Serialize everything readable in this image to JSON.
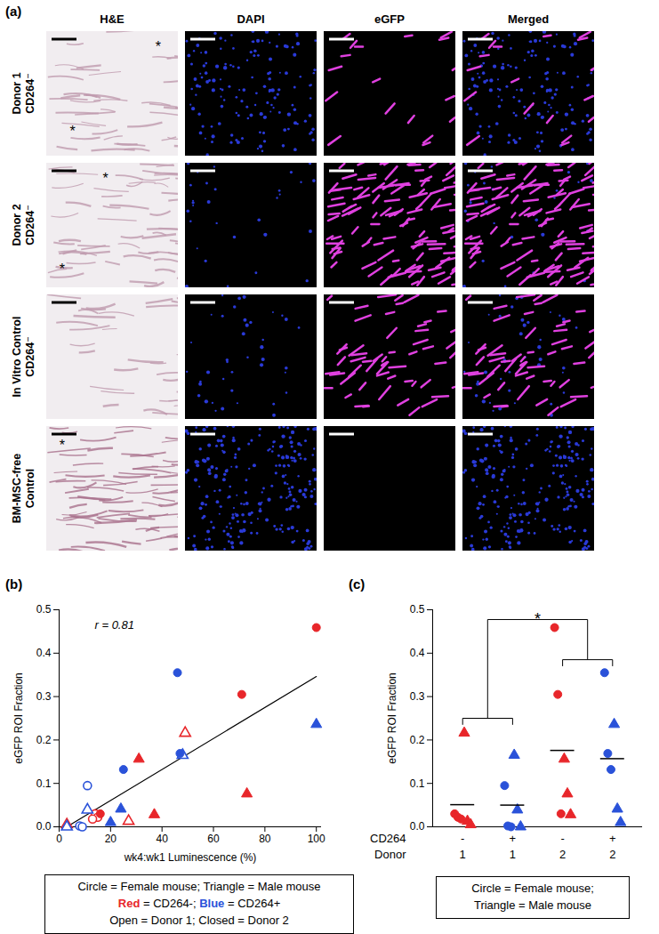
{
  "panel_a": {
    "label": "(a)",
    "columns": [
      "H&E",
      "DAPI",
      "eGFP",
      "Merged"
    ],
    "rows": [
      {
        "label": [
          "Donor 1",
          "CD264⁻"
        ],
        "annotations": [
          "*",
          "*"
        ]
      },
      {
        "label": [
          "Donor 2",
          "CD264⁻"
        ],
        "annotations": [
          "*",
          "*"
        ]
      },
      {
        "label": [
          "In Vitro Control",
          "CD264⁻"
        ],
        "annotations": []
      },
      {
        "label": [
          "BM-MSC-free",
          "Control"
        ],
        "annotations": [
          "*"
        ]
      }
    ]
  },
  "chart_data": [
    {
      "type": "scatter",
      "title": "(b)",
      "x_label": "wk4:wk1 Luminescence (%)",
      "y_label": "eGFP ROI Fraction",
      "xlim": [
        0,
        102
      ],
      "ylim": [
        0,
        0.5
      ],
      "xticks": [
        0,
        20,
        40,
        60,
        80,
        100
      ],
      "yticks": [
        {
          "value": 0,
          "label": "0.0"
        },
        {
          "value": 0.1,
          "label": "0.1"
        },
        {
          "value": 0.2,
          "label": "0.2"
        },
        {
          "value": 0.3,
          "label": "0.3"
        },
        {
          "value": 0.4,
          "label": "0.4"
        },
        {
          "value": 0.5,
          "label": "0.5"
        }
      ],
      "annotations": [
        {
          "text": "r = 0.81"
        }
      ],
      "series": [
        {
          "color": "#e8262a",
          "marker": "circle-open",
          "x": [
            14,
            15,
            13
          ],
          "values": [
            0.03,
            0.022,
            0.018
          ]
        },
        {
          "color": "#e8262a",
          "marker": "triangle-open",
          "x": [
            49,
            27,
            3
          ],
          "values": [
            0.216,
            0.013,
            0.005
          ]
        },
        {
          "color": "#2a52d9",
          "marker": "circle-open",
          "x": [
            11,
            8,
            9
          ],
          "values": [
            0.095,
            0.002,
            0.0
          ]
        },
        {
          "color": "#2a52d9",
          "marker": "triangle-open",
          "x": [
            48,
            11,
            3
          ],
          "values": [
            0.165,
            0.039,
            0.0
          ]
        },
        {
          "color": "#e8262a",
          "marker": "circle",
          "x": [
            100,
            71,
            16
          ],
          "values": [
            0.459,
            0.305,
            0.03
          ]
        },
        {
          "color": "#e8262a",
          "marker": "triangle",
          "x": [
            31,
            73,
            37
          ],
          "values": [
            0.156,
            0.076,
            0.028
          ]
        },
        {
          "color": "#2a52d9",
          "marker": "circle",
          "x": [
            46,
            47,
            25
          ],
          "values": [
            0.355,
            0.169,
            0.132
          ]
        },
        {
          "color": "#2a52d9",
          "marker": "triangle",
          "x": [
            100,
            24,
            20
          ],
          "values": [
            0.236,
            0.041,
            0.01
          ]
        }
      ],
      "legend_text": [
        [
          {
            "text": "Circle = Female mouse; Triangle = Male mouse"
          }
        ],
        [
          {
            "text": "Red",
            "color": "#e8262a"
          },
          {
            "text": " = CD264-; "
          },
          {
            "text": "Blue",
            "color": "#2a52d9"
          },
          {
            "text": " = CD264+"
          }
        ],
        [
          {
            "text": "Open = Donor 1; Closed = Donor 2"
          }
        ]
      ]
    },
    {
      "type": "strip",
      "title": "(c)",
      "y_label": "eGFP ROI Fraction",
      "ylim": [
        0,
        0.5
      ],
      "yticks": [
        {
          "value": 0,
          "label": "0.0"
        },
        {
          "value": 0.1,
          "label": "0.1"
        },
        {
          "value": 0.2,
          "label": "0.2"
        },
        {
          "value": 0.3,
          "label": "0.3"
        },
        {
          "value": 0.4,
          "label": "0.4"
        },
        {
          "value": 0.5,
          "label": "0.5"
        }
      ],
      "category_rows": [
        {
          "label": "CD264",
          "values": [
            "-",
            "+",
            "-",
            "+"
          ]
        },
        {
          "label": "Donor",
          "values": [
            "1",
            "1",
            "2",
            "2"
          ]
        }
      ],
      "means": [
        0.051,
        0.05,
        0.176,
        0.157
      ],
      "annotations": [
        {
          "text": "*",
          "between": [
            [
              0,
              1
            ],
            [
              2,
              3
            ]
          ]
        }
      ],
      "series": [
        {
          "category": 0,
          "color": "#e8262a",
          "marker": "circle",
          "values": [
            0.03,
            0.022,
            0.018
          ]
        },
        {
          "category": 0,
          "color": "#e8262a",
          "marker": "triangle",
          "values": [
            0.216,
            0.013,
            0.005
          ]
        },
        {
          "category": 1,
          "color": "#2a52d9",
          "marker": "circle",
          "values": [
            0.095,
            0.002,
            0.0
          ]
        },
        {
          "category": 1,
          "color": "#2a52d9",
          "marker": "triangle",
          "values": [
            0.165,
            0.039,
            0.0
          ]
        },
        {
          "category": 2,
          "color": "#e8262a",
          "marker": "circle",
          "values": [
            0.459,
            0.305,
            0.03
          ]
        },
        {
          "category": 2,
          "color": "#e8262a",
          "marker": "triangle",
          "values": [
            0.156,
            0.076,
            0.028
          ]
        },
        {
          "category": 3,
          "color": "#2a52d9",
          "marker": "circle",
          "values": [
            0.355,
            0.169,
            0.132
          ]
        },
        {
          "category": 3,
          "color": "#2a52d9",
          "marker": "triangle",
          "values": [
            0.236,
            0.041,
            0.01
          ]
        }
      ],
      "legend_text": [
        [
          {
            "text": "Circle = Female mouse;"
          }
        ],
        [
          {
            "text": "Triangle = Male mouse"
          }
        ]
      ]
    }
  ]
}
